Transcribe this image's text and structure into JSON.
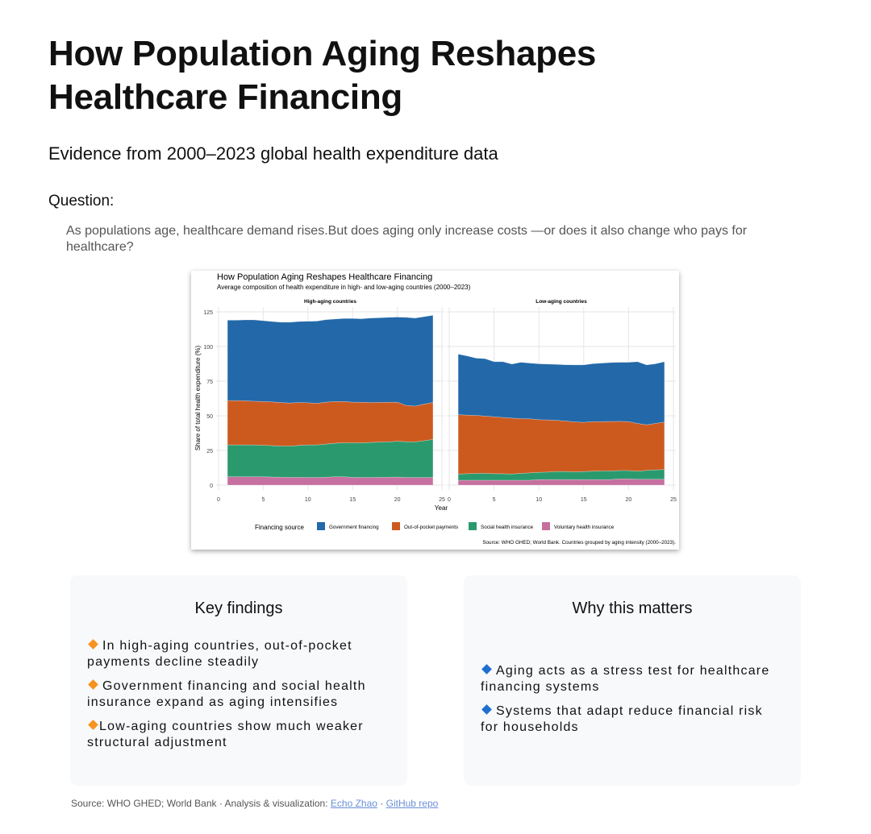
{
  "header": {
    "title": "How Population Aging Reshapes Healthcare Financing",
    "subtitle": "Evidence from 2000–2023 global health expenditure data"
  },
  "question": {
    "label": "Question:",
    "text": "As populations age, healthcare demand rises.But does aging only increase costs —or does it also change who pays for healthcare?"
  },
  "chart_data": {
    "type": "area",
    "stacked": true,
    "title": "How Population Aging Reshapes Healthcare Financing",
    "subtitle": "Average composition of health expenditure in high- and low-aging countries (2000–2023)",
    "xlabel": "Year",
    "ylabel": "Share of total health expenditure (%)",
    "xlim": [
      0,
      25
    ],
    "ylim": [
      0,
      125
    ],
    "xticks": [
      "0",
      "5",
      "10",
      "15",
      "20",
      "25"
    ],
    "yticks": [
      "0",
      "25",
      "50",
      "75",
      "100",
      "125"
    ],
    "grid": true,
    "legend_title": "Financing source",
    "legend_position": "bottom",
    "caption": "Source: WHO GHED; World Bank. Countries grouped by aging intensity (2000–2023).",
    "colors": {
      "Voluntary health insurance": "#c5709f",
      "Social health insurance": "#2a9a6e",
      "Out-of-pocket payments": "#cc5a1f",
      "Government financing": "#2369a9"
    },
    "legend": [
      "Government financing",
      "Out-of-pocket payments",
      "Social health insurance",
      "Voluntary health insurance"
    ],
    "x": [
      1,
      2,
      3,
      4,
      5,
      6,
      7,
      8,
      9,
      10,
      11,
      12,
      13,
      14,
      15,
      16,
      17,
      18,
      19,
      20,
      21,
      22,
      23,
      24
    ],
    "panels": [
      {
        "title": "High-aging countries",
        "series": [
          {
            "name": "Voluntary health insurance",
            "values": [
              6,
              6,
              6,
              6,
              6,
              5.8,
              5.7,
              5.6,
              5.6,
              5.5,
              5.5,
              5.7,
              6,
              6,
              5.6,
              5.5,
              5.5,
              5.6,
              5.7,
              5.8,
              5.5,
              5.5,
              5.5,
              5.5
            ]
          },
          {
            "name": "Social health insurance",
            "values": [
              23,
              23,
              23,
              23,
              22.7,
              22.7,
              22.5,
              22.6,
              23,
              23.5,
              23.5,
              23.9,
              24.2,
              24.5,
              24.9,
              25,
              25.3,
              25.4,
              25.5,
              25.8,
              25.8,
              25.7,
              26.5,
              27.5
            ]
          },
          {
            "name": "Out-of-pocket payments",
            "values": [
              32,
              32,
              31.8,
              31.5,
              31.6,
              31.5,
              31.3,
              31,
              31,
              30.4,
              30,
              30.2,
              30.1,
              29.8,
              29.3,
              29.3,
              28.8,
              28.7,
              28.6,
              28.2,
              26.2,
              25.8,
              26.4,
              26.6
            ]
          },
          {
            "name": "Government financing",
            "values": [
              58,
              58,
              58.4,
              58.7,
              58.3,
              58,
              58,
              58.3,
              58.4,
              58.8,
              59.3,
              59.5,
              59.5,
              59.9,
              60.4,
              60.2,
              60.9,
              61,
              61.2,
              61.4,
              63.5,
              63.5,
              63.1,
              62.9
            ]
          }
        ]
      },
      {
        "title": "Low-aging countries",
        "series": [
          {
            "name": "Voluntary health insurance",
            "values": [
              3.5,
              3.5,
              3.5,
              3.5,
              3.5,
              3.5,
              3.5,
              3.5,
              3.5,
              4,
              4,
              4,
              4,
              4,
              4,
              4,
              4,
              4,
              4.5,
              4.5,
              4.2,
              4.2,
              4.2,
              4.2
            ]
          },
          {
            "name": "Social health insurance",
            "values": [
              4.5,
              4.7,
              4.9,
              5,
              4.7,
              4.7,
              4.5,
              5,
              5.3,
              5.2,
              5.4,
              5.8,
              5.8,
              5.5,
              5.8,
              6,
              6.2,
              6.2,
              6,
              6,
              5.8,
              6.4,
              6.8,
              7
            ]
          },
          {
            "name": "Out-of-pocket payments",
            "values": [
              42.8,
              42.3,
              41.9,
              41.3,
              41.1,
              40.6,
              40.3,
              39.5,
              39,
              38,
              37.6,
              36.9,
              36.4,
              36.1,
              35.5,
              35.8,
              35.6,
              35.7,
              35.5,
              35.3,
              34.5,
              32.9,
              33.5,
              34.3
            ]
          },
          {
            "name": "Government financing",
            "values": [
              43.7,
              42.7,
              41.3,
              41.4,
              39.7,
              40.2,
              39,
              40.6,
              40.2,
              40.3,
              40.3,
              40.4,
              40.6,
              41.1,
              41.4,
              41.8,
              42.2,
              42.5,
              42.6,
              42.8,
              44.5,
              43.2,
              43,
              43.5
            ]
          }
        ]
      }
    ]
  },
  "findings": {
    "title": "Key findings",
    "bullet_color": "#f7931e",
    "items": [
      "In high-aging countries, out-of-pocket payments decline steadily",
      "Government financing and social health insurance expand as aging intensifies",
      "Low-aging countries show much weaker structural adjustment"
    ]
  },
  "matters": {
    "title": "Why this matters",
    "bullet_color": "#1e6fd1",
    "items": [
      "Aging acts as a stress test for healthcare financing systems",
      "Systems that adapt reduce financial risk for households"
    ]
  },
  "footer": {
    "prefix": "Source: WHO GHED; World Bank · Analysis & visualization: ",
    "author": "Echo Zhao",
    "sep": " · ",
    "repo": "GitHub repo"
  }
}
